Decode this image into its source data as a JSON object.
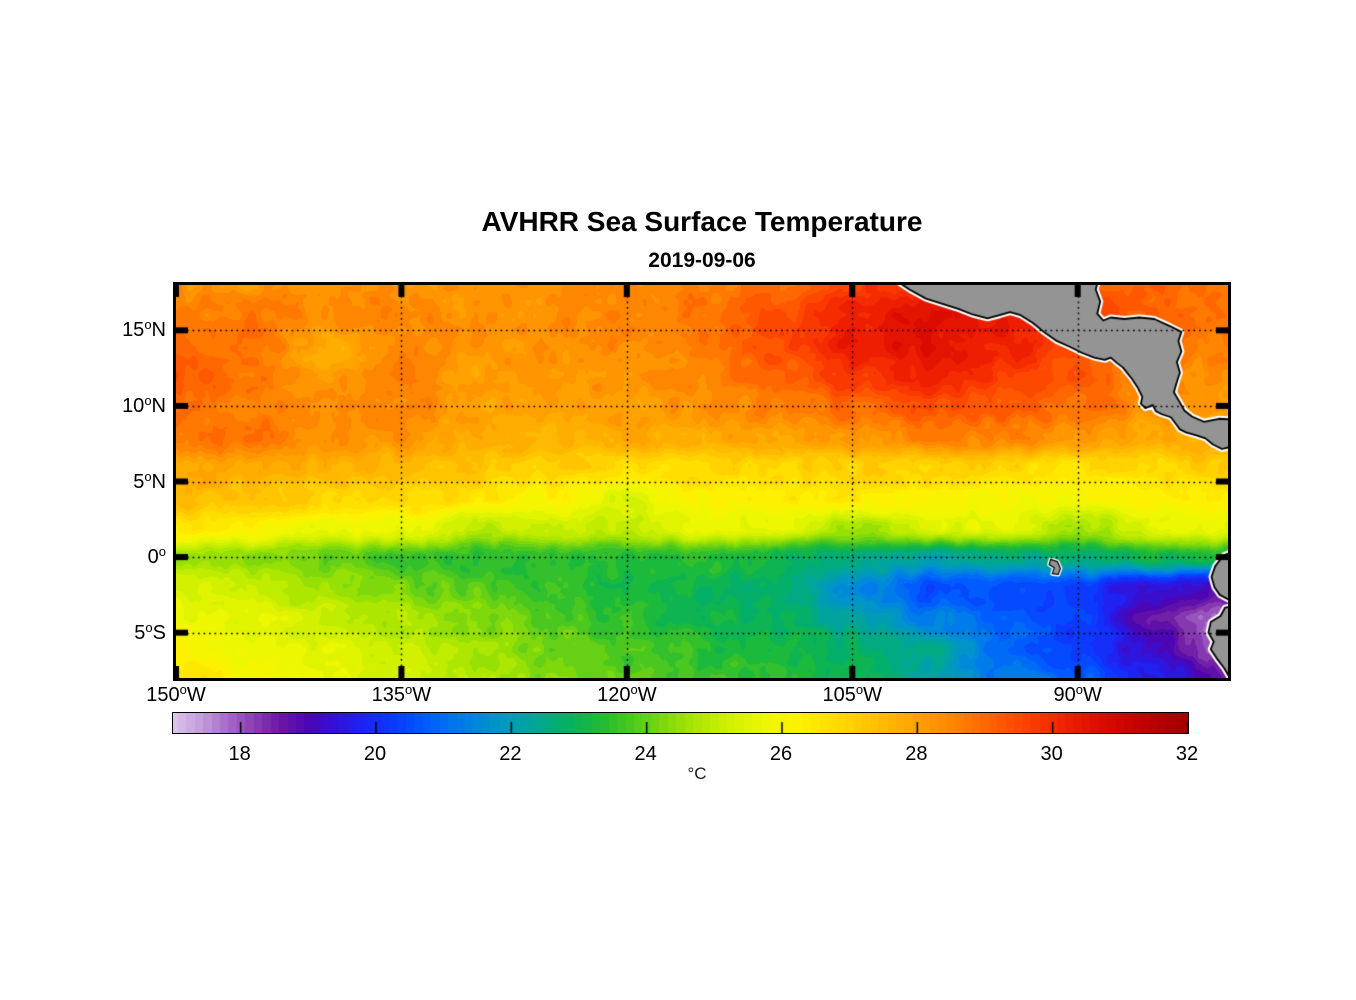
{
  "title": "AVHRR Sea Surface Temperature",
  "subtitle": "2019-09-06",
  "axes": {
    "x_ticks": [
      {
        "pre": "150",
        "sup": "o",
        "post": "W",
        "lon": -150
      },
      {
        "pre": "135",
        "sup": "o",
        "post": "W",
        "lon": -135
      },
      {
        "pre": "120",
        "sup": "o",
        "post": "W",
        "lon": -120
      },
      {
        "pre": "105",
        "sup": "o",
        "post": "W",
        "lon": -105
      },
      {
        "pre": "90",
        "sup": "o",
        "post": "W",
        "lon": -90
      }
    ],
    "y_ticks": [
      {
        "pre": "15",
        "sup": "o",
        "post": "N",
        "lat": 15
      },
      {
        "pre": "10",
        "sup": "o",
        "post": "N",
        "lat": 10
      },
      {
        "pre": "5",
        "sup": "o",
        "post": "N",
        "lat": 5
      },
      {
        "pre": "0",
        "sup": "o",
        "post": "",
        "lat": 0
      },
      {
        "pre": "5",
        "sup": "o",
        "post": "S",
        "lat": -5
      }
    ],
    "grid_lons": [
      -135,
      -120,
      -105,
      -90
    ],
    "grid_lats": [
      15,
      10,
      5,
      0,
      -5
    ]
  },
  "colorbar": {
    "range": [
      17,
      32
    ],
    "tick_values": [
      18,
      20,
      22,
      24,
      26,
      28,
      30,
      32
    ],
    "unit": "°C"
  },
  "chart_data": {
    "type": "heatmap",
    "title": "AVHRR Sea Surface Temperature",
    "date": "2019-09-06",
    "units": "°C",
    "lon_range": [
      -150,
      -80
    ],
    "lat_range": [
      -8,
      18
    ],
    "lons": [
      -150,
      -145,
      -140,
      -135,
      -130,
      -125,
      -120,
      -115,
      -110,
      -105,
      -100,
      -95,
      -90,
      -85,
      -80
    ],
    "lats": [
      18,
      16,
      14,
      12,
      10,
      8,
      6,
      4,
      2,
      0,
      -2,
      -4,
      -6,
      -8
    ],
    "sst_c": [
      [
        28.3,
        28.2,
        28.4,
        28.3,
        28.2,
        28.3,
        28.4,
        28.6,
        29.0,
        29.6,
        30.0,
        29.8,
        29.2,
        29.0,
        28.8
      ],
      [
        28.6,
        28.8,
        28.4,
        28.6,
        28.3,
        28.4,
        28.5,
        28.8,
        29.4,
        30.2,
        30.6,
        30.2,
        29.6,
        29.1,
        28.8
      ],
      [
        29.0,
        28.8,
        27.8,
        28.4,
        28.2,
        28.3,
        28.4,
        28.8,
        29.4,
        30.3,
        30.6,
        30.2,
        29.4,
        28.9,
        28.6
      ],
      [
        29.2,
        28.9,
        28.2,
        28.6,
        28.1,
        28.2,
        28.3,
        28.6,
        29.0,
        29.8,
        30.2,
        29.8,
        29.2,
        28.6,
        28.4
      ],
      [
        29.0,
        28.6,
        28.4,
        28.5,
        28.0,
        28.0,
        28.1,
        28.3,
        28.6,
        29.0,
        29.4,
        29.2,
        28.8,
        28.4,
        28.2
      ],
      [
        28.8,
        28.9,
        28.3,
        28.2,
        27.8,
        27.7,
        27.8,
        27.9,
        28.0,
        28.3,
        28.6,
        28.6,
        28.2,
        27.9,
        27.8
      ],
      [
        27.9,
        27.9,
        27.7,
        27.6,
        27.3,
        27.0,
        26.8,
        26.9,
        27.0,
        27.0,
        27.0,
        26.9,
        26.7,
        26.9,
        27.2
      ],
      [
        27.6,
        27.2,
        27.0,
        26.9,
        26.6,
        26.2,
        25.5,
        26.2,
        26.4,
        26.4,
        26.3,
        26.1,
        26.0,
        26.2,
        26.4
      ],
      [
        26.5,
        26.3,
        25.9,
        25.9,
        24.9,
        25.3,
        25.1,
        25.7,
        25.6,
        24.6,
        25.4,
        25.7,
        24.6,
        25.5,
        25.7
      ],
      [
        24.6,
        24.4,
        23.9,
        23.6,
        23.4,
        23.3,
        23.2,
        23.4,
        23.0,
        22.6,
        22.2,
        22.4,
        22.6,
        23.0,
        23.2
      ],
      [
        25.4,
        25.1,
        24.6,
        24.2,
        23.9,
        23.5,
        23.2,
        23.0,
        22.6,
        21.6,
        20.5,
        20.5,
        20.3,
        19.3,
        19.0
      ],
      [
        25.8,
        25.5,
        25.2,
        24.8,
        24.3,
        23.8,
        23.4,
        23.1,
        22.8,
        22.2,
        21.3,
        20.7,
        20.3,
        18.8,
        17.7
      ],
      [
        26.2,
        25.9,
        25.5,
        25.1,
        24.6,
        24.1,
        23.7,
        23.4,
        23.1,
        22.8,
        22.4,
        21.0,
        20.3,
        19.2,
        17.8
      ],
      [
        26.5,
        26.1,
        25.7,
        25.2,
        24.8,
        24.3,
        23.9,
        23.6,
        23.4,
        23.0,
        22.2,
        21.2,
        20.8,
        19.8,
        18.5
      ]
    ],
    "colormap_stops": [
      [
        17.0,
        "#DCC3EA"
      ],
      [
        17.4,
        "#C49EDC"
      ],
      [
        17.8,
        "#A76BC8"
      ],
      [
        18.2,
        "#8A3DB2"
      ],
      [
        18.6,
        "#6B16A4"
      ],
      [
        19.0,
        "#4C06B4"
      ],
      [
        19.4,
        "#3312D8"
      ],
      [
        19.8,
        "#1C24F4"
      ],
      [
        20.3,
        "#0A3CFF"
      ],
      [
        20.8,
        "#0060FF"
      ],
      [
        21.3,
        "#007EE8"
      ],
      [
        21.8,
        "#0096C4"
      ],
      [
        22.3,
        "#00A699"
      ],
      [
        22.8,
        "#04B064"
      ],
      [
        23.3,
        "#1EBA38"
      ],
      [
        23.8,
        "#50CA1C"
      ],
      [
        24.3,
        "#84DA0A"
      ],
      [
        24.8,
        "#B2E800"
      ],
      [
        25.3,
        "#D6F200"
      ],
      [
        25.8,
        "#F0F800"
      ],
      [
        26.3,
        "#FFF000"
      ],
      [
        26.8,
        "#FFDC00"
      ],
      [
        27.3,
        "#FFC400"
      ],
      [
        27.8,
        "#FFAC00"
      ],
      [
        28.3,
        "#FF9200"
      ],
      [
        28.8,
        "#FF7500"
      ],
      [
        29.3,
        "#FF5500"
      ],
      [
        29.8,
        "#FA3600"
      ],
      [
        30.3,
        "#EC1C00"
      ],
      [
        30.8,
        "#D80A00"
      ],
      [
        31.4,
        "#BE0200"
      ],
      [
        32.0,
        "#A00000"
      ]
    ],
    "land_color": "#949494",
    "land_polygons": {
      "mesoamerica": [
        [
          -102.4,
          18.5
        ],
        [
          -101.2,
          17.7
        ],
        [
          -100.1,
          17.1
        ],
        [
          -99.0,
          16.75
        ],
        [
          -97.9,
          16.4
        ],
        [
          -97.0,
          16.05
        ],
        [
          -96.0,
          15.8
        ],
        [
          -95.2,
          16.0
        ],
        [
          -94.5,
          16.2
        ],
        [
          -93.8,
          16.0
        ],
        [
          -93.0,
          15.5
        ],
        [
          -92.2,
          14.85
        ],
        [
          -91.4,
          14.3
        ],
        [
          -90.5,
          13.9
        ],
        [
          -89.7,
          13.5
        ],
        [
          -88.9,
          13.2
        ],
        [
          -88.2,
          13.05
        ],
        [
          -87.8,
          13.2
        ],
        [
          -87.4,
          12.85
        ],
        [
          -87.0,
          12.55
        ],
        [
          -86.4,
          11.8
        ],
        [
          -86.0,
          11.2
        ],
        [
          -85.7,
          10.6
        ],
        [
          -85.8,
          10.15
        ],
        [
          -85.5,
          9.85
        ],
        [
          -85.0,
          10.05
        ],
        [
          -84.8,
          9.65
        ],
        [
          -84.4,
          9.45
        ],
        [
          -83.8,
          9.25
        ],
        [
          -83.5,
          8.85
        ],
        [
          -83.2,
          8.45
        ],
        [
          -82.8,
          8.25
        ],
        [
          -82.1,
          8.05
        ],
        [
          -81.5,
          7.85
        ],
        [
          -81.0,
          7.45
        ],
        [
          -80.4,
          7.15
        ],
        [
          -79.6,
          7.35
        ],
        [
          -79.4,
          8.2
        ],
        [
          -79.6,
          9.1
        ],
        [
          -80.6,
          9.15
        ],
        [
          -81.6,
          8.95
        ],
        [
          -82.4,
          9.3
        ],
        [
          -82.9,
          9.7
        ],
        [
          -83.3,
          10.4
        ],
        [
          -83.6,
          10.9
        ],
        [
          -83.4,
          11.6
        ],
        [
          -83.2,
          12.2
        ],
        [
          -83.4,
          12.9
        ],
        [
          -83.1,
          13.6
        ],
        [
          -83.3,
          14.3
        ],
        [
          -83.1,
          14.9
        ],
        [
          -83.9,
          15.3
        ],
        [
          -84.9,
          15.75
        ],
        [
          -85.9,
          15.85
        ],
        [
          -86.9,
          15.75
        ],
        [
          -87.8,
          15.85
        ],
        [
          -88.3,
          15.65
        ],
        [
          -88.7,
          16.1
        ],
        [
          -88.5,
          16.9
        ],
        [
          -88.8,
          17.7
        ],
        [
          -88.6,
          18.5
        ]
      ],
      "ecuador": [
        [
          -79.5,
          0.45
        ],
        [
          -80.3,
          0.1
        ],
        [
          -80.85,
          -0.6
        ],
        [
          -81.1,
          -1.3
        ],
        [
          -80.9,
          -2.0
        ],
        [
          -80.55,
          -2.5
        ],
        [
          -79.9,
          -2.85
        ],
        [
          -79.5,
          -2.7
        ]
      ],
      "peru": [
        [
          -79.5,
          -3.2
        ],
        [
          -80.2,
          -3.35
        ],
        [
          -80.5,
          -3.9
        ],
        [
          -81.15,
          -4.3
        ],
        [
          -81.3,
          -5.0
        ],
        [
          -80.95,
          -5.6
        ],
        [
          -81.15,
          -6.1
        ],
        [
          -80.75,
          -6.7
        ],
        [
          -80.25,
          -7.35
        ],
        [
          -79.9,
          -7.95
        ],
        [
          -79.5,
          -8.5
        ]
      ],
      "galapagos": [
        [
          -91.8,
          -0.15
        ],
        [
          -91.35,
          -0.3
        ],
        [
          -91.15,
          -0.75
        ],
        [
          -91.3,
          -1.15
        ],
        [
          -91.7,
          -1.1
        ],
        [
          -91.55,
          -0.7
        ],
        [
          -91.9,
          -0.5
        ]
      ]
    }
  }
}
